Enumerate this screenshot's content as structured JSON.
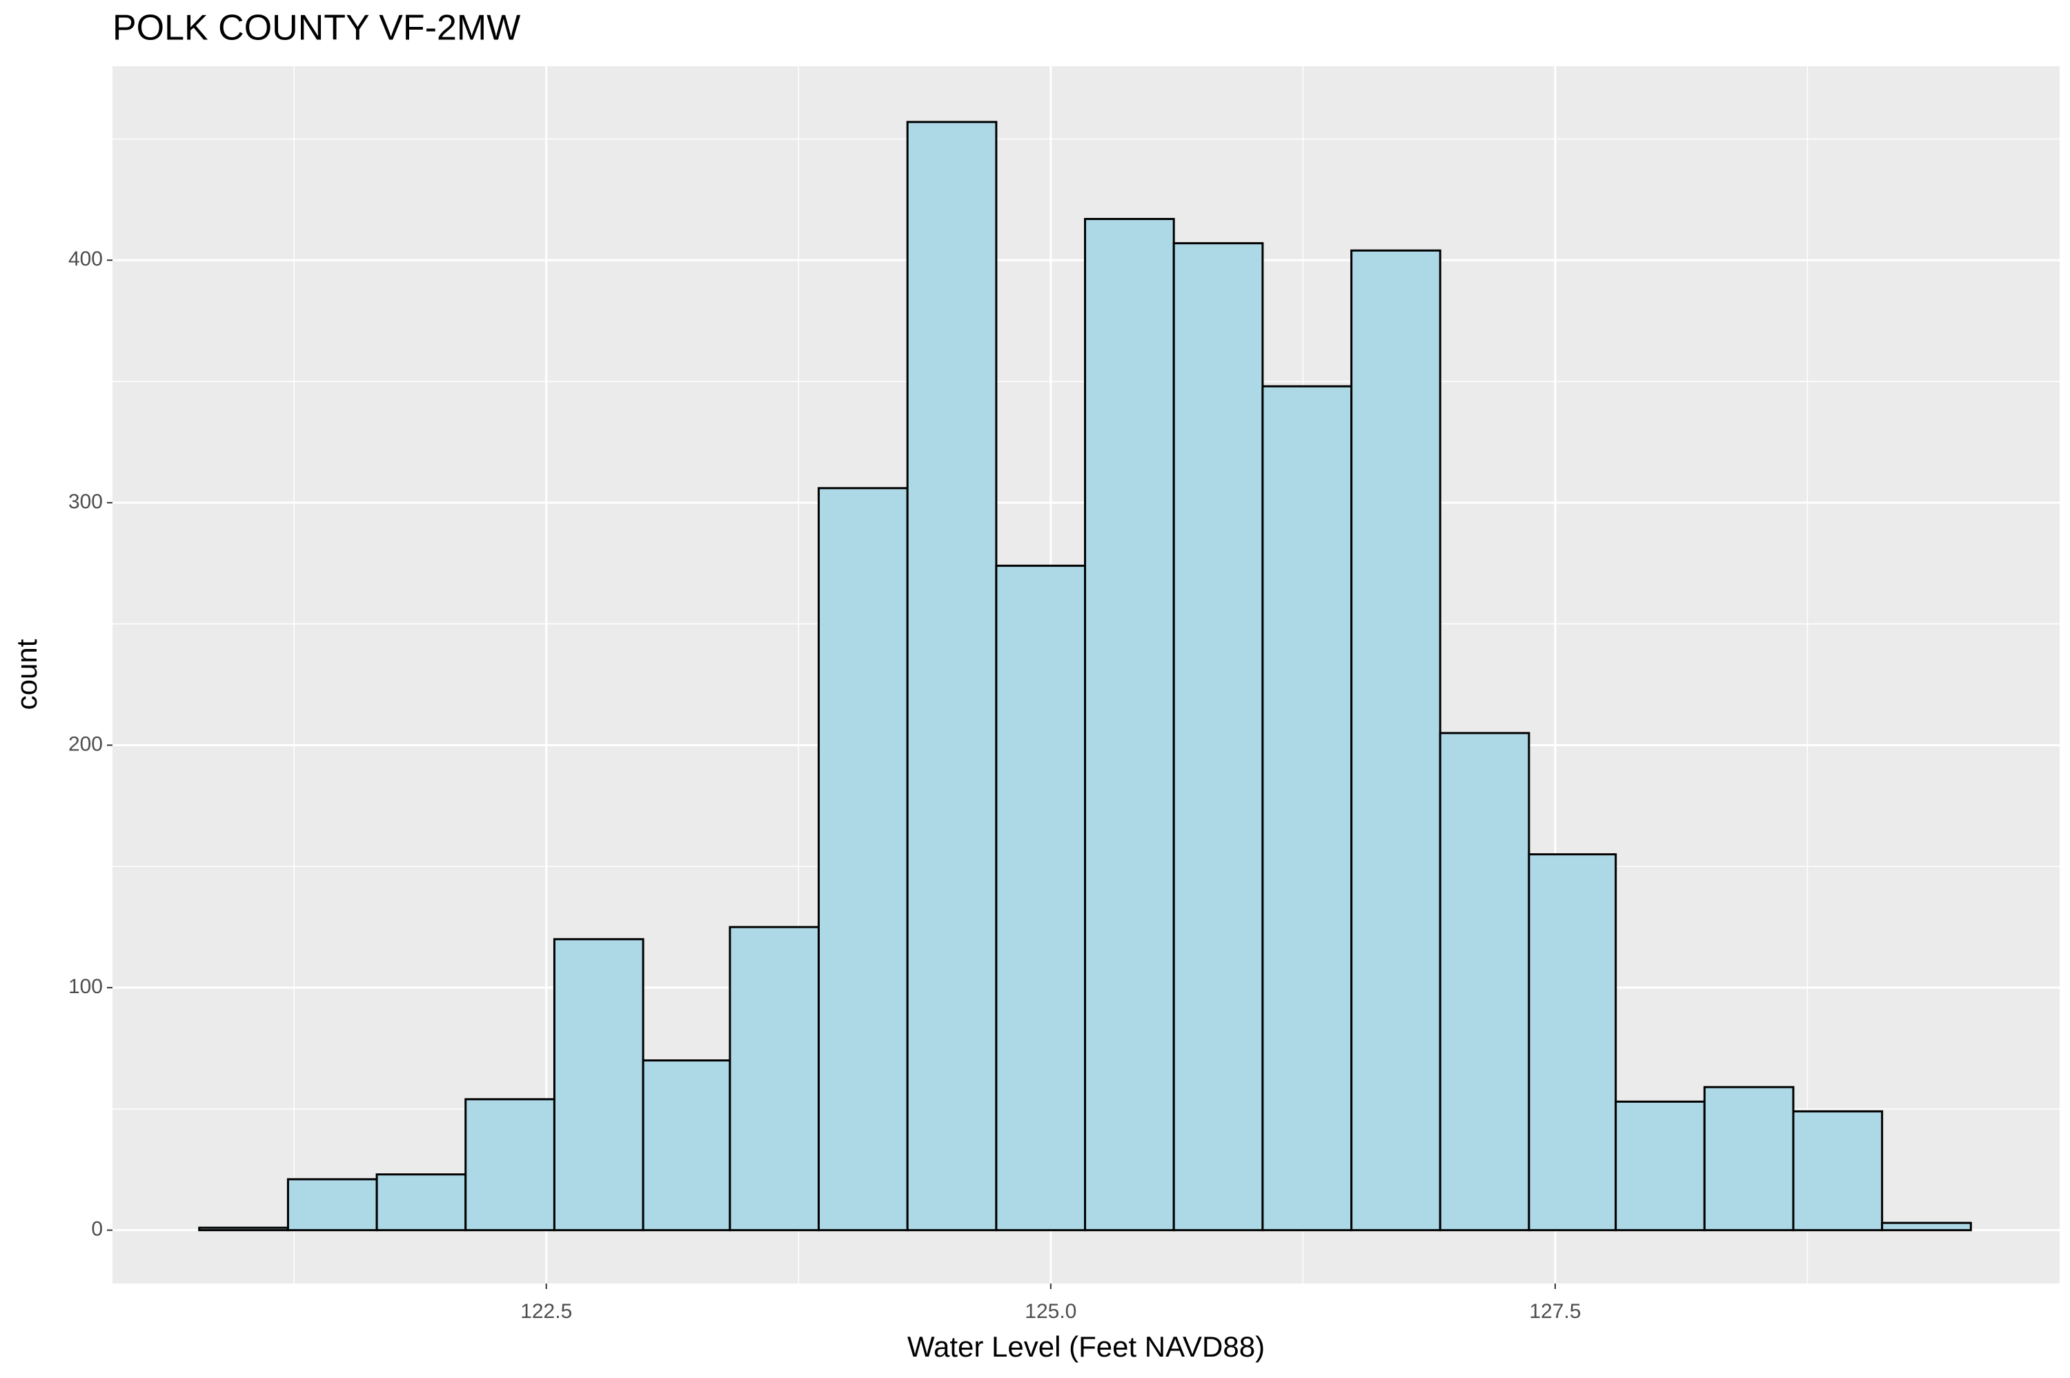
{
  "chart_data": {
    "type": "histogram",
    "title": "POLK COUNTY VF-2MW",
    "x_label": "Water Level (Feet NAVD88)",
    "y_label": "count",
    "bins": [
      120.78,
      121.22,
      121.66,
      122.1,
      122.54,
      122.98,
      123.41,
      123.85,
      124.29,
      124.73,
      125.17,
      125.61,
      126.05,
      126.49,
      126.93,
      127.37,
      127.8,
      128.24,
      128.68,
      129.12,
      129.56
    ],
    "values": [
      1,
      21,
      23,
      54,
      120,
      70,
      125,
      306,
      457,
      274,
      417,
      407,
      348,
      404,
      205,
      155,
      53,
      59,
      49,
      3
    ],
    "color": "#add8e6",
    "edge_color": "#000000",
    "xlim": [
      120.35,
      130.0
    ],
    "xticks": [
      {
        "value": 122.5,
        "label": "122.5"
      },
      {
        "value": 125.0,
        "label": "125.0"
      },
      {
        "value": 127.5,
        "label": "127.5"
      }
    ],
    "ylim": [
      -22,
      480
    ],
    "yticks": [
      0,
      100,
      200,
      300,
      400
    ],
    "grid": true
  }
}
